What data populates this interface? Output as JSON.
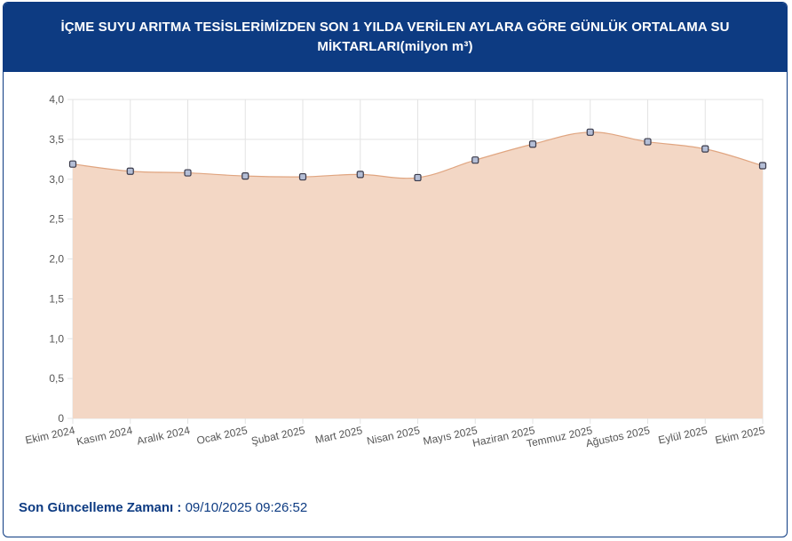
{
  "header": {
    "title": "İÇME SUYU ARITMA TESİSLERİMİZDEN SON 1 YILDA VERİLEN AYLARA GÖRE GÜNLÜK ORTALAMA SU MİKTARLARI(milyon m³)"
  },
  "footer": {
    "label": "Son Güncelleme Zamanı :",
    "value": "09/10/2025 09:26:52"
  },
  "colors": {
    "header_bg": "#0d3b82",
    "area_fill": "#f3d7c5",
    "line": "#e0a580",
    "point_fill": "#b4bed6",
    "point_stroke": "#3a3a4a",
    "grid": "#e3e3e3"
  },
  "chart_data": {
    "type": "area",
    "categories": [
      "Ekim 2024",
      "Kasım 2024",
      "Aralık 2024",
      "Ocak 2025",
      "Şubat 2025",
      "Mart 2025",
      "Nisan 2025",
      "Mayıs 2025",
      "Haziran 2025",
      "Temmuz 2025",
      "Ağustos 2025",
      "Eylül 2025",
      "Ekim 2025"
    ],
    "values": [
      3.19,
      3.1,
      3.08,
      3.04,
      3.03,
      3.06,
      3.02,
      3.24,
      3.44,
      3.59,
      3.47,
      3.38,
      3.17
    ],
    "ylim": [
      0,
      4
    ],
    "yticks": [
      "0",
      "0,5",
      "1,0",
      "1,5",
      "2,0",
      "2,5",
      "3,0",
      "3,5",
      "4,0"
    ],
    "ytick_values": [
      0,
      0.5,
      1,
      1.5,
      2,
      2.5,
      3,
      3.5,
      4
    ],
    "grid": true,
    "legend": "none",
    "title": "",
    "xlabel": "",
    "ylabel": ""
  }
}
